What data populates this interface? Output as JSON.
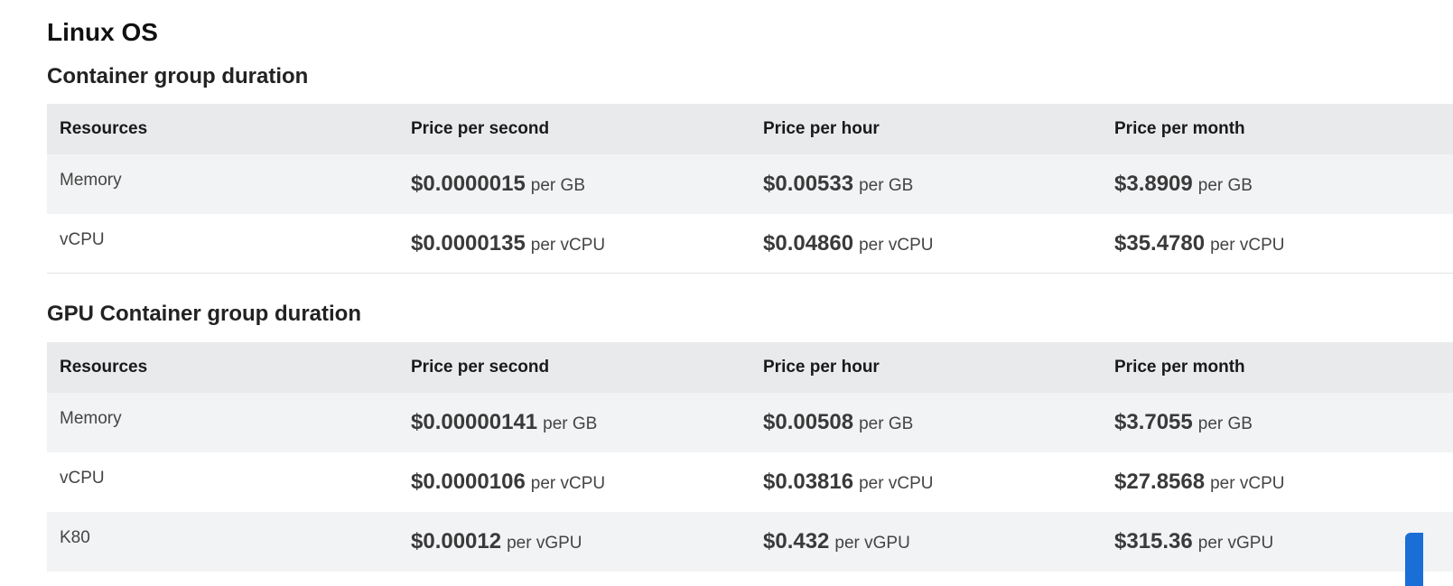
{
  "os_title": "Linux OS",
  "sections": [
    {
      "title": "Container group duration",
      "headers": [
        "Resources",
        "Price per second",
        "Price per hour",
        "Price per month"
      ],
      "rows": [
        {
          "resource": "Memory",
          "second": {
            "price": "$0.0000015",
            "unit": "per GB"
          },
          "hour": {
            "price": "$0.00533",
            "unit": "per GB"
          },
          "month": {
            "price": "$3.8909",
            "unit": "per GB"
          }
        },
        {
          "resource": "vCPU",
          "second": {
            "price": "$0.0000135",
            "unit": "per vCPU"
          },
          "hour": {
            "price": "$0.04860",
            "unit": "per vCPU"
          },
          "month": {
            "price": "$35.4780",
            "unit": "per vCPU"
          }
        }
      ]
    },
    {
      "title": "GPU Container group duration",
      "headers": [
        "Resources",
        "Price per second",
        "Price per hour",
        "Price per month"
      ],
      "rows": [
        {
          "resource": "Memory",
          "second": {
            "price": "$0.00000141",
            "unit": "per GB"
          },
          "hour": {
            "price": "$0.00508",
            "unit": "per GB"
          },
          "month": {
            "price": "$3.7055",
            "unit": "per GB"
          }
        },
        {
          "resource": "vCPU",
          "second": {
            "price": "$0.0000106",
            "unit": "per vCPU"
          },
          "hour": {
            "price": "$0.03816",
            "unit": "per vCPU"
          },
          "month": {
            "price": "$27.8568",
            "unit": "per vCPU"
          }
        },
        {
          "resource": "K80",
          "second": {
            "price": "$0.00012",
            "unit": "per vGPU"
          },
          "hour": {
            "price": "$0.432",
            "unit": "per vGPU"
          },
          "month": {
            "price": "$315.36",
            "unit": "per vGPU"
          }
        }
      ]
    }
  ],
  "colors": {
    "header_bg": "#e9eaec",
    "alt_row_bg": "#f2f3f5",
    "accent": "#1a6fd6"
  }
}
